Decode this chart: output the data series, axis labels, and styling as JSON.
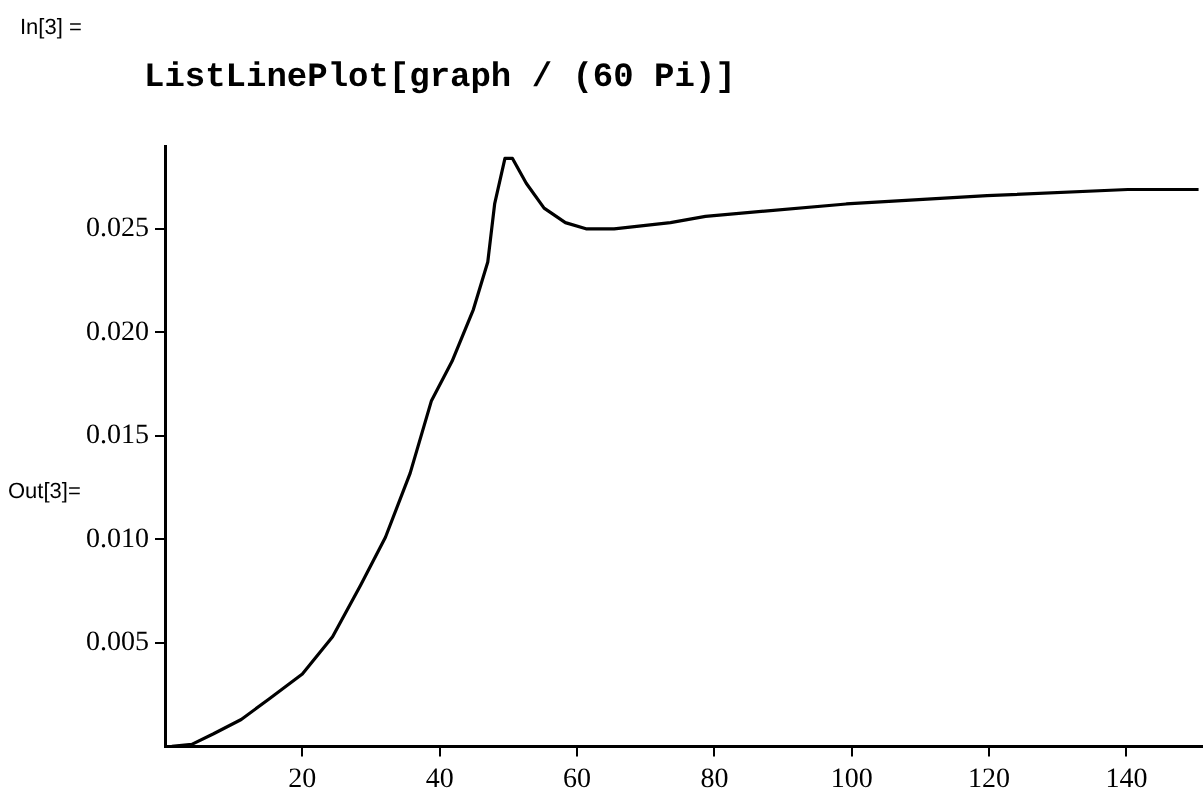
{
  "chart_data": {
    "type": "line",
    "title": "ListLinePlot[graph / (60 Pi)]",
    "annotations": [
      "In[3] =",
      "Out[3]="
    ],
    "x": [
      1,
      3.9,
      7,
      11.1,
      15.2,
      20,
      24.4,
      28.5,
      32.1,
      35.7,
      38.8,
      41.8,
      44.9,
      47,
      48,
      49.5,
      50.6,
      52.6,
      55.2,
      58.3,
      61.3,
      65.4,
      73.6,
      78.7,
      99.2,
      119.7,
      140.2,
      150.5
    ],
    "series": [
      {
        "color": "#000000",
        "values": [
          0,
          0.0001,
          0.0006,
          0.0013,
          0.0023,
          0.0035,
          0.0053,
          0.0078,
          0.0101,
          0.0132,
          0.0167,
          0.0186,
          0.0211,
          0.0234,
          0.0262,
          0.0284,
          0.0284,
          0.0272,
          0.026,
          0.0253,
          0.025,
          0.025,
          0.0253,
          0.0256,
          0.0262,
          0.0266,
          0.0269,
          0.0269
        ]
      }
    ],
    "xlim": [
      0,
      151
    ],
    "xticks": [
      20,
      40,
      60,
      80,
      100,
      120,
      140
    ],
    "ylim": [
      0,
      0.029
    ],
    "yticks": [
      0.005,
      {
        "value": 0.01,
        "label": "0.010"
      },
      0.015,
      {
        "value": 0.02,
        "label": "0.020"
      },
      0.025
    ],
    "grid": false,
    "legend": false,
    "marker": "none",
    "line_style": "solid"
  }
}
